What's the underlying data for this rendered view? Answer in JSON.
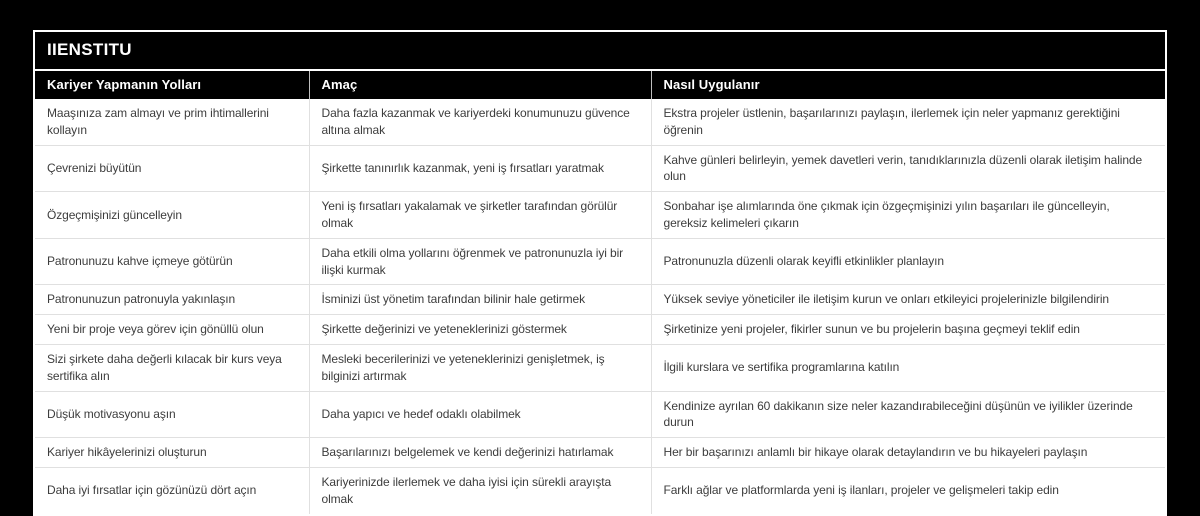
{
  "title": "IIENSTITU",
  "colors": {
    "page_background": "#000000",
    "frame_border": "#ffffff",
    "header_background": "#000000",
    "header_text": "#ffffff",
    "body_background": "#ffffff",
    "body_text": "#3d3d3d",
    "divider": "#e0e0e0"
  },
  "table": {
    "columns": [
      "Kariyer Yapmanın Yolları",
      "Amaç",
      "Nasıl Uygulanır"
    ],
    "rows": [
      [
        "Maaşınıza zam almayı ve prim ihtimallerini kollayın",
        "Daha fazla kazanmak ve kariyerdeki konumunuzu güvence altına almak",
        "Ekstra projeler üstlenin, başarılarınızı paylaşın, ilerlemek için neler yapmanız gerektiğini öğrenin"
      ],
      [
        "Çevrenizi büyütün",
        "Şirkette tanınırlık kazanmak, yeni iş fırsatları yaratmak",
        "Kahve günleri belirleyin, yemek davetleri verin, tanıdıklarınızla düzenli olarak iletişim halinde olun"
      ],
      [
        "Özgeçmişinizi güncelleyin",
        "Yeni iş fırsatları yakalamak ve şirketler tarafından görülür olmak",
        "Sonbahar işe alımlarında öne çıkmak için özgeçmişinizi yılın başarıları ile güncelleyin, gereksiz kelimeleri çıkarın"
      ],
      [
        "Patronunuzu kahve içmeye götürün",
        "Daha etkili olma yollarını öğrenmek ve patronunuzla iyi bir ilişki kurmak",
        "Patronunuzla düzenli olarak keyifli etkinlikler planlayın"
      ],
      [
        "Patronunuzun patronuyla yakınlaşın",
        "İsminizi üst yönetim tarafından bilinir hale getirmek",
        "Yüksek seviye yöneticiler ile iletişim kurun ve onları etkileyici projelerinizle bilgilendirin"
      ],
      [
        "Yeni bir proje veya görev için gönüllü olun",
        "Şirkette değerinizi ve yeteneklerinizi göstermek",
        "Şirketinize yeni projeler, fikirler sunun ve bu projelerin başına geçmeyi teklif edin"
      ],
      [
        "Sizi şirkete daha değerli kılacak bir kurs veya sertifika alın",
        "Mesleki becerilerinizi ve yeteneklerinizi genişletmek, iş bilginizi artırmak",
        "İlgili kurslara ve sertifika programlarına katılın"
      ],
      [
        "Düşük motivasyonu aşın",
        "Daha yapıcı ve hedef odaklı olabilmek",
        "Kendinize ayrılan 60 dakikanın size neler kazandırabileceğini düşünün ve iyilikler üzerinde durun"
      ],
      [
        "Kariyer hikâyelerinizi oluşturun",
        "Başarılarınızı belgelemek ve kendi değerinizi hatırlamak",
        "Her bir başarınızı anlamlı bir hikaye olarak detaylandırın ve bu hikayeleri paylaşın"
      ],
      [
        "Daha iyi fırsatlar için gözünüzü dört açın",
        "Kariyerinizde ilerlemek ve daha iyisi için sürekli arayışta olmak",
        "Farklı ağlar ve platformlarda yeni iş ilanları, projeler ve gelişmeleri takip edin"
      ]
    ]
  }
}
